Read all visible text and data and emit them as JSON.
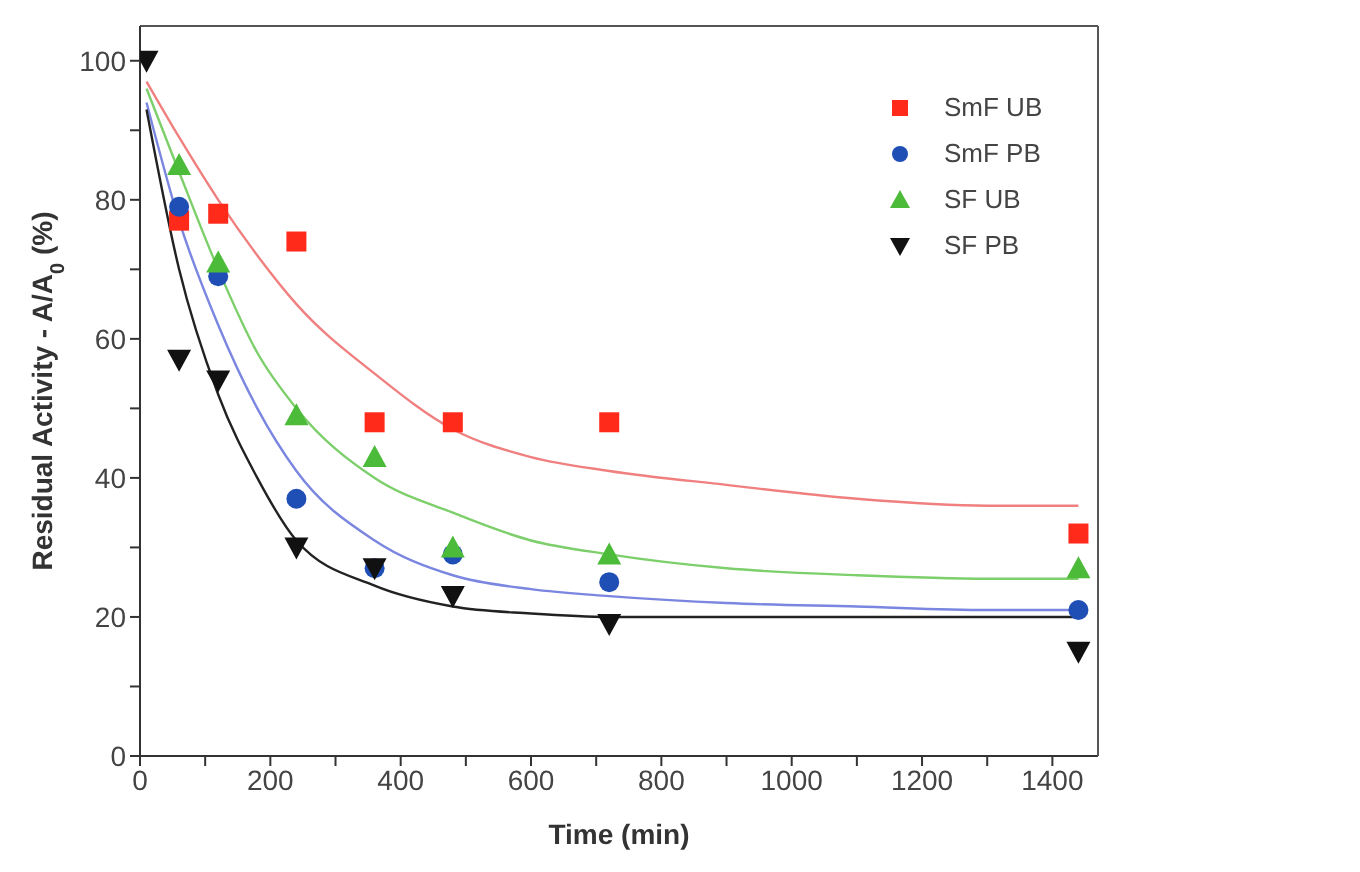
{
  "chart_data": {
    "type": "scatter",
    "xlabel": "Time (min)",
    "ylabel": "Residual Activity - A/A$_{0}$ (%)",
    "xlim": [
      0,
      1470
    ],
    "ylim": [
      0,
      105
    ],
    "xticks": [
      0,
      {
        "value": 100,
        "label": null
      },
      200,
      {
        "value": 300,
        "label": null
      },
      400,
      {
        "value": 500,
        "label": null
      },
      600,
      {
        "value": 700,
        "label": null
      },
      800,
      {
        "value": 900,
        "label": null
      },
      1000,
      {
        "value": 1100,
        "label": null
      },
      1200,
      {
        "value": 1300,
        "label": null
      },
      1400
    ],
    "yticks": [
      0,
      {
        "value": 10,
        "label": null
      },
      20,
      {
        "value": 30,
        "label": null
      },
      40,
      {
        "value": 50,
        "label": null
      },
      60,
      {
        "value": 70,
        "label": null
      },
      80,
      {
        "value": 90,
        "label": null
      },
      100
    ],
    "legend": "top right",
    "series": [
      {
        "name": "SmF UB",
        "color": "#ff2a1a",
        "marker": "square",
        "x": [
          60,
          120,
          240,
          360,
          480,
          720,
          1440
        ],
        "values": [
          77,
          78,
          74,
          48,
          48,
          48,
          32
        ]
      },
      {
        "name": "SmF PB",
        "color": "#1f4fb5",
        "marker": "circle",
        "x": [
          60,
          120,
          240,
          360,
          480,
          720,
          1440
        ],
        "values": [
          79,
          69,
          37,
          27,
          29,
          25,
          21
        ]
      },
      {
        "name": "SF UB",
        "color": "#4cbb3a",
        "marker": "triangle",
        "x": [
          60,
          120,
          240,
          360,
          480,
          720,
          1440
        ],
        "values": [
          85,
          71,
          49,
          43,
          30,
          29,
          27
        ]
      },
      {
        "name": "SF PB",
        "color": "#111111",
        "marker": "triangle-down",
        "x": [
          10,
          60,
          120,
          240,
          360,
          480,
          720,
          1440
        ],
        "values": [
          100,
          57,
          54,
          30,
          27,
          23,
          19,
          15
        ]
      },
      {
        "type": "line",
        "color": "#f08080",
        "marker": "none",
        "x": [
          10,
          60,
          120,
          180,
          240,
          360,
          480,
          600,
          720,
          900,
          1100,
          1300,
          1440
        ],
        "values": [
          97,
          89,
          80,
          72,
          65,
          55,
          47,
          43,
          41,
          39,
          37,
          36,
          36
        ]
      },
      {
        "type": "line",
        "color": "#7ccf6a",
        "marker": "none",
        "x": [
          10,
          60,
          120,
          180,
          240,
          360,
          480,
          600,
          720,
          900,
          1100,
          1300,
          1440
        ],
        "values": [
          96,
          84,
          70,
          58,
          50,
          40,
          35,
          31,
          29,
          27,
          26,
          25.5,
          25.5
        ]
      },
      {
        "type": "line",
        "color": "#7a86e0",
        "marker": "none",
        "x": [
          10,
          60,
          120,
          180,
          240,
          360,
          480,
          600,
          720,
          900,
          1100,
          1300,
          1440
        ],
        "values": [
          94,
          77,
          62,
          50,
          41,
          31,
          26,
          24,
          23,
          22,
          21.5,
          21,
          21
        ]
      },
      {
        "type": "line",
        "color": "#222222",
        "marker": "none",
        "x": [
          10,
          60,
          120,
          180,
          240,
          360,
          480,
          600,
          720,
          900,
          1100,
          1300,
          1440
        ],
        "values": [
          93,
          70,
          52,
          40,
          31,
          24.5,
          21.5,
          20.5,
          20,
          20,
          20,
          20,
          20
        ]
      }
    ]
  }
}
